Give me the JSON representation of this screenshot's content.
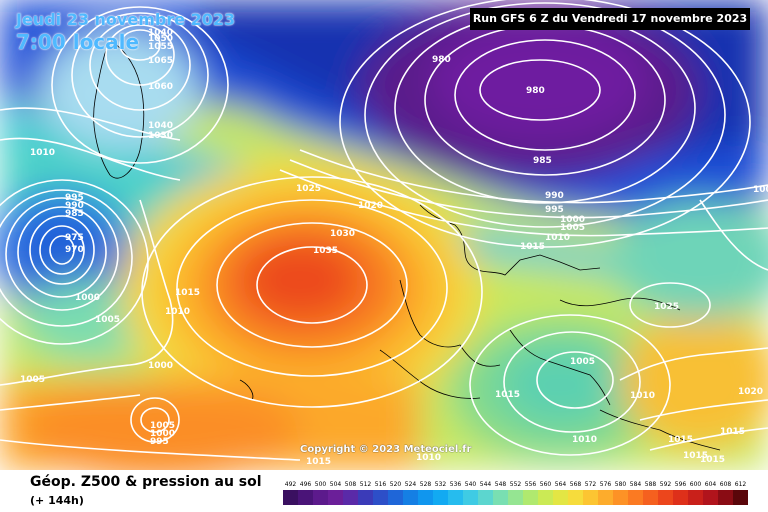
{
  "header": {
    "date_line1": "Jeudi 23 novembre 2023",
    "date_line2": "7:00 locale",
    "run_title": "Run GFS 6 Z du Vendredi 17 novembre 2023",
    "copyright": "Copyright © 2023 Meteociel.fr"
  },
  "footer": {
    "title": "Géop. Z500 & pression au sol",
    "subtitle": "(+ 144h)"
  },
  "legend": {
    "values": [
      "492",
      "496",
      "500",
      "504",
      "508",
      "512",
      "516",
      "520",
      "524",
      "528",
      "532",
      "536",
      "540",
      "544",
      "548",
      "552",
      "556",
      "560",
      "564",
      "568",
      "572",
      "576",
      "580",
      "584",
      "588",
      "592",
      "596",
      "600",
      "604",
      "608",
      "612"
    ],
    "colors": [
      "#3a1060",
      "#4a1478",
      "#5c1a8c",
      "#6b1f99",
      "#5a2aa8",
      "#3b3bb8",
      "#2d4fc8",
      "#1f66d8",
      "#157fe4",
      "#1096ee",
      "#12aaf2",
      "#26bcee",
      "#3fcbe4",
      "#5cd6cf",
      "#79dfb2",
      "#95e592",
      "#b0e96f",
      "#cbea55",
      "#e3e644",
      "#f6dc3c",
      "#fcc532",
      "#fdac2c",
      "#fd9226",
      "#fb7a22",
      "#f5601f",
      "#ec461c",
      "#de301a",
      "#c9201a",
      "#b1141c",
      "#8a0c14",
      "#5a060a"
    ]
  },
  "isobars": {
    "labels": [
      "1040",
      "1050",
      "1055",
      "1065",
      "1060",
      "1040",
      "1030",
      "1010",
      "995",
      "990",
      "985",
      "975",
      "970",
      "1000",
      "1005",
      "1025",
      "1020",
      "1030",
      "1035",
      "1015",
      "1010",
      "1000",
      "1005",
      "1005",
      "1000",
      "995",
      "980",
      "980",
      "985",
      "990",
      "995",
      "1000",
      "1005",
      "1010",
      "1015",
      "1005",
      "1025",
      "1015",
      "1010",
      "1010",
      "1005",
      "1020",
      "1015",
      "1015",
      "1015",
      "1015",
      "1010",
      "1015"
    ]
  }
}
